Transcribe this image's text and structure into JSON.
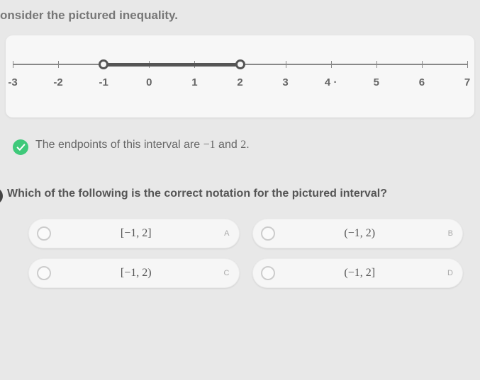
{
  "prompt": "onsider the pictured inequality.",
  "numberline": {
    "ticks": [
      -3,
      -2,
      -1,
      0,
      1,
      2,
      3,
      4,
      5,
      6,
      7
    ],
    "tick_labels": [
      "-3",
      "-2",
      "-1",
      "0",
      "1",
      "2",
      "3",
      "4 ·",
      "5",
      "6",
      "7"
    ],
    "axis_color": "#888",
    "interval_start": -1,
    "interval_end": 2,
    "endpoint_fill": "open",
    "endpoint_border": "#555",
    "bar_color": "#555",
    "card_bg": "#f7f7f7"
  },
  "statement": {
    "prefix": "The endpoints of this interval are ",
    "v1": "−1",
    "mid": " and ",
    "v2": "2",
    "suffix": ".",
    "check_color": "#3fc97a"
  },
  "question": {
    "badge": "b",
    "text": "Which of the following is the correct notation for the pictured interval?",
    "options": [
      {
        "label": "[−1, 2]",
        "letter": "A"
      },
      {
        "label": "(−1, 2)",
        "letter": "B"
      },
      {
        "label": "[−1, 2)",
        "letter": "C"
      },
      {
        "label": "(−1, 2]",
        "letter": "D"
      }
    ]
  },
  "colors": {
    "page_bg": "#e8e8e8",
    "text": "#555",
    "muted": "#aaa"
  }
}
